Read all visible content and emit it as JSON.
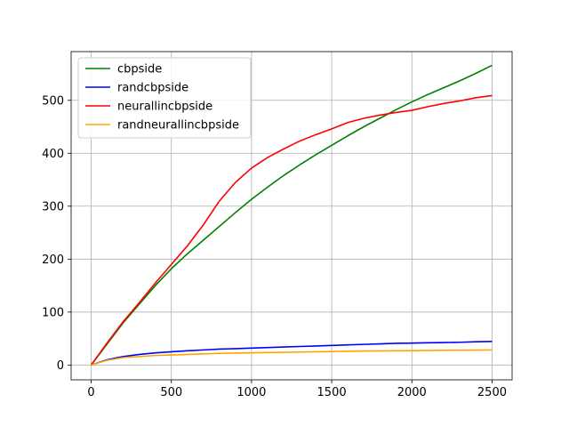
{
  "chart_data": {
    "type": "line",
    "title": "",
    "xlabel": "",
    "ylabel": "",
    "xlim": [
      -125,
      2625
    ],
    "ylim": [
      -28,
      592
    ],
    "xticks": [
      0,
      500,
      1000,
      1500,
      2000,
      2500
    ],
    "yticks": [
      0,
      100,
      200,
      300,
      400,
      500
    ],
    "grid": true,
    "legend_position": "top-left",
    "series": [
      {
        "name": "cbpside",
        "color": "#008000",
        "x": [
          0,
          100,
          200,
          300,
          400,
          500,
          600,
          700,
          800,
          900,
          1000,
          1100,
          1200,
          1300,
          1400,
          1500,
          1600,
          1700,
          1800,
          1900,
          2000,
          2100,
          2200,
          2300,
          2400,
          2500
        ],
        "y": [
          0,
          40,
          80,
          115,
          150,
          182,
          210,
          236,
          262,
          288,
          313,
          336,
          358,
          378,
          397,
          415,
          433,
          450,
          466,
          482,
          497,
          511,
          524,
          537,
          551,
          566
        ]
      },
      {
        "name": "randcbpside",
        "color": "#0000ff",
        "x": [
          0,
          100,
          200,
          300,
          400,
          500,
          600,
          700,
          800,
          900,
          1000,
          1100,
          1200,
          1300,
          1400,
          1500,
          1600,
          1700,
          1800,
          1900,
          2000,
          2100,
          2200,
          2300,
          2400,
          2500
        ],
        "y": [
          0,
          10,
          16,
          20,
          23,
          25,
          27,
          28.5,
          30,
          31,
          32,
          33,
          34,
          35,
          36,
          37,
          38,
          39,
          40,
          41,
          41.5,
          42,
          42.5,
          43,
          44,
          44.5
        ]
      },
      {
        "name": "neurallincbpside",
        "color": "#ff0000",
        "x": [
          0,
          100,
          200,
          300,
          400,
          500,
          600,
          700,
          800,
          900,
          1000,
          1100,
          1200,
          1300,
          1400,
          1500,
          1600,
          1700,
          1800,
          1900,
          2000,
          2100,
          2200,
          2300,
          2400,
          2500
        ],
        "y": [
          0,
          42,
          82,
          118,
          155,
          190,
          225,
          265,
          310,
          345,
          372,
          392,
          408,
          423,
          435,
          446,
          458,
          466,
          472,
          477,
          481,
          488,
          494,
          499,
          505,
          509
        ]
      },
      {
        "name": "randneurallincbpside",
        "color": "#ffa500",
        "x": [
          0,
          100,
          200,
          300,
          400,
          500,
          600,
          700,
          800,
          900,
          1000,
          1100,
          1200,
          1300,
          1400,
          1500,
          1600,
          1700,
          1800,
          1900,
          2000,
          2100,
          2200,
          2300,
          2400,
          2500
        ],
        "y": [
          0,
          9,
          14,
          16,
          18,
          19,
          20,
          21,
          22,
          22.5,
          23,
          23.5,
          24,
          24.5,
          25,
          25.5,
          26,
          26.5,
          26.8,
          27,
          27.2,
          27.5,
          27.8,
          28,
          28.2,
          28.5
        ]
      }
    ]
  }
}
